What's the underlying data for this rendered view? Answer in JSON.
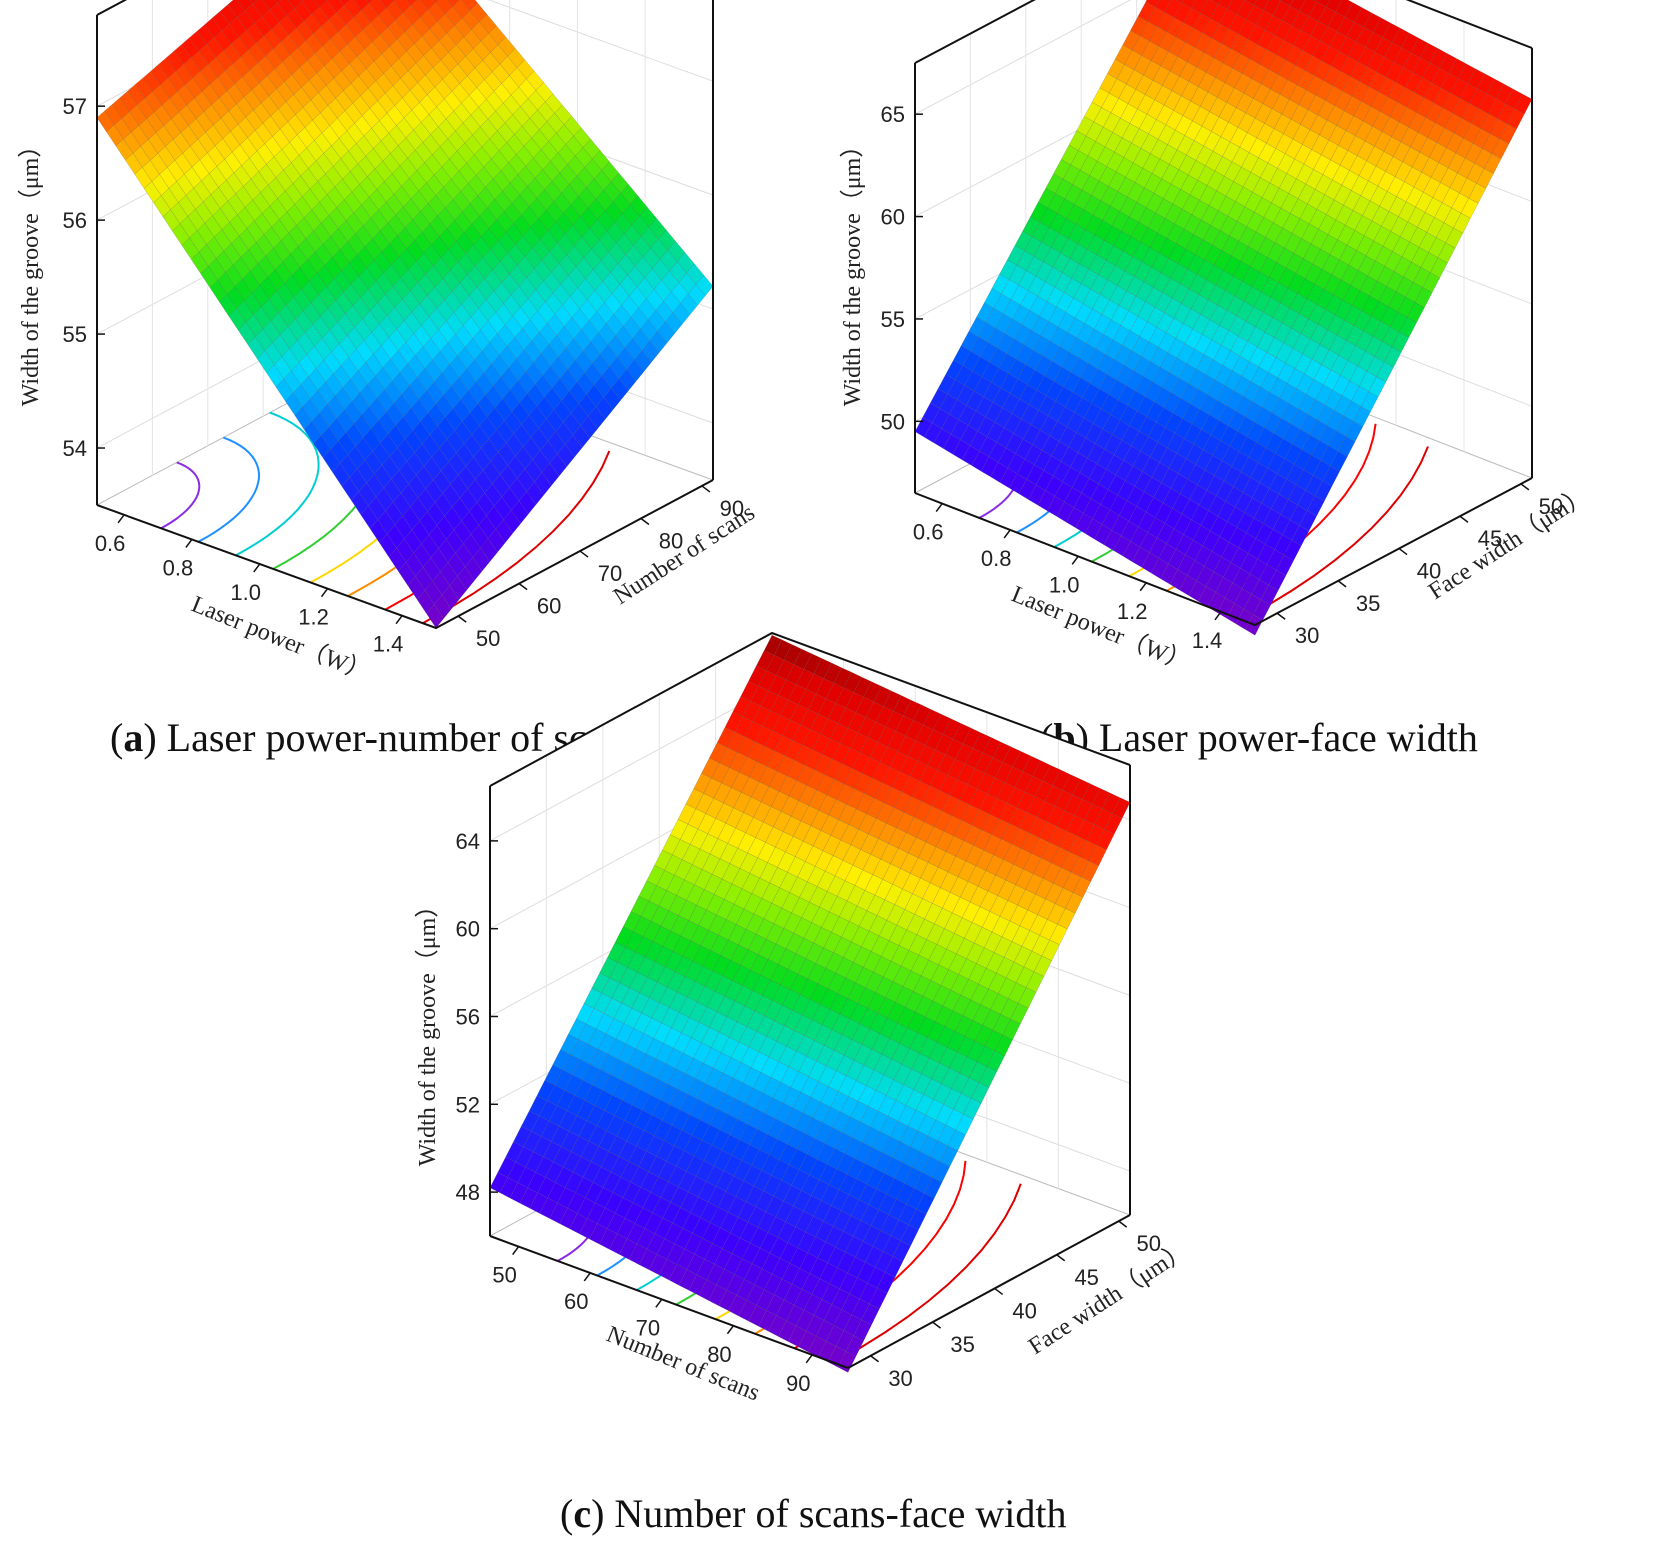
{
  "chart_data": [
    {
      "type": "surface",
      "panel_letter": "a",
      "caption": "Laser power-number of scans",
      "xlabel": "Laser power（W）",
      "ylabel": "Number of scans",
      "zlabel": "Width of the groove（μm）",
      "x_ticks": [
        "0.6",
        "0.8",
        "1.0",
        "1.2",
        "1.4"
      ],
      "y_ticks": [
        "50",
        "60",
        "70",
        "80",
        "90"
      ],
      "z_ticks": [
        "54",
        "55",
        "56",
        "57"
      ],
      "xlim": [
        0.5,
        1.5
      ],
      "ylim": [
        50,
        90
      ],
      "zlim": [
        53.6,
        57.8
      ],
      "surface_corners": {
        "x_high_y_low": 56.9,
        "x_high_y_high": 57.7,
        "x_low_y_low": 53.5,
        "x_low_y_high": 55.2
      },
      "contour_colors": [
        "#8a2be2",
        "#1e90ff",
        "#00ced1",
        "#32cd32",
        "#ffd700",
        "#ff8c00",
        "#ff0000",
        "#dd0000"
      ]
    },
    {
      "type": "surface",
      "panel_letter": "b",
      "caption": "Laser power-face width",
      "xlabel": "Laser power（W）",
      "ylabel": "Face width（μm）",
      "zlabel": "Width of the groove（μm）",
      "x_ticks": [
        "0.6",
        "0.8",
        "1.0",
        "1.2",
        "1.4"
      ],
      "y_ticks": [
        "30",
        "35",
        "40",
        "45",
        "50"
      ],
      "z_ticks": [
        "50",
        "55",
        "60",
        "65"
      ],
      "xlim": [
        0.5,
        1.5
      ],
      "ylim": [
        30,
        50
      ],
      "zlim": [
        47.0,
        68.0
      ],
      "surface_corners": {
        "x_high_y_low": 49.5,
        "x_high_y_high": 67.5,
        "x_low_y_low": 46.0,
        "x_low_y_high": 65.0
      },
      "contour_colors": [
        "#8a2be2",
        "#1e90ff",
        "#00ced1",
        "#32cd32",
        "#ffd700",
        "#ff8c00",
        "#ff0000",
        "#dd0000"
      ]
    },
    {
      "type": "surface",
      "panel_letter": "c",
      "caption": "Number of scans-face width",
      "xlabel": "Number of scans",
      "ylabel": "Face width（μm）",
      "zlabel": "Width of the groove（μm）",
      "x_ticks": [
        "50",
        "60",
        "70",
        "80",
        "90"
      ],
      "y_ticks": [
        "30",
        "35",
        "40",
        "45",
        "50"
      ],
      "z_ticks": [
        "48",
        "52",
        "56",
        "60",
        "64"
      ],
      "xlim": [
        50,
        90
      ],
      "ylim": [
        30,
        50
      ],
      "zlim": [
        46.0,
        66.5
      ],
      "surface_corners": {
        "x_high_y_low": 48.2,
        "x_high_y_high": 66.4,
        "x_low_y_low": 45.8,
        "x_low_y_high": 64.8
      },
      "contour_colors": [
        "#8a2be2",
        "#1e90ff",
        "#00ced1",
        "#32cd32",
        "#ffd700",
        "#ff8c00",
        "#ff0000",
        "#dd0000"
      ]
    }
  ]
}
